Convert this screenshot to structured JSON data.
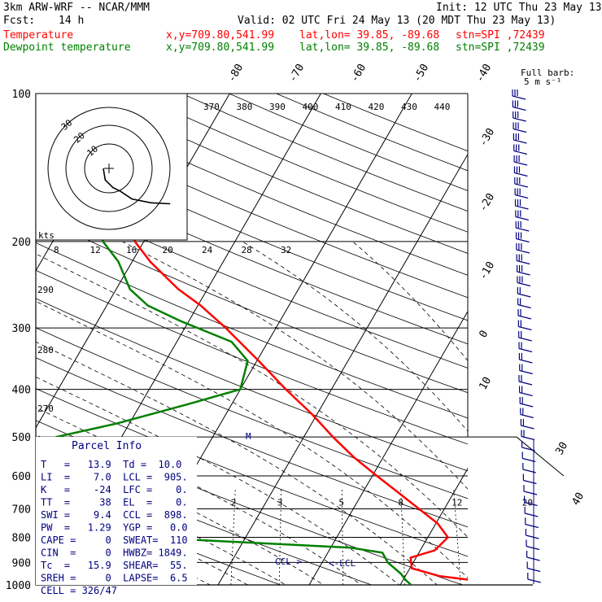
{
  "header": {
    "model": "3km ARW-WRF -- NCAR/MMM",
    "init": "Init: 12 UTC Thu 23 May 13",
    "fcst_label": "Fcst:",
    "fcst_value": "14 h",
    "valid": "Valid: 02 UTC Fri 24 May 13 (20 MDT Thu 23 May 13)"
  },
  "legend": [
    {
      "name": "Temperature",
      "xy": "x,y=709.80,541.99",
      "latlon": "lat,lon= 39.85, -89.68",
      "stn": "stn=SPI ,72439",
      "color": "#ff0000"
    },
    {
      "name": "Dewpoint temperature",
      "xy": "x,y=709.80,541.99",
      "latlon": "lat,lon= 39.85, -89.68",
      "stn": "stn=SPI ,72439",
      "color": "#008000"
    }
  ],
  "colors": {
    "temperature": "#ff0000",
    "dewpoint": "#008000",
    "wind": "#000080",
    "hodograph": "#000000"
  },
  "chart_data": {
    "type": "line",
    "title": "",
    "x_axis": "temperature (°C), skewed",
    "y_axis": "pressure (hPa), log scale",
    "pressure_ticks": [
      100,
      200,
      300,
      400,
      500,
      600,
      700,
      800,
      900,
      1000
    ],
    "top_temp_labels": [
      "-80",
      "-70",
      "-60",
      "-50",
      "-40"
    ],
    "right_temp_labels": [
      "-30",
      "-20",
      "-10",
      "0",
      "10"
    ],
    "side_temp_labels": [
      "30",
      "40"
    ],
    "theta_e_labels": [
      "370",
      "380",
      "390",
      "400",
      "410",
      "420",
      "430",
      "440"
    ],
    "theta_left_labels": [
      "290",
      "280",
      "270"
    ],
    "mixing_ratio_labels": [
      "2",
      "3",
      "5",
      "8",
      "12",
      "20"
    ],
    "series": [
      {
        "name": "Temperature",
        "points": [
          {
            "p": 1000,
            "t": 19.4
          },
          {
            "p": 975,
            "t": 17.0
          },
          {
            "p": 960,
            "t": 13.8
          },
          {
            "p": 925,
            "t": 10.2
          },
          {
            "p": 880,
            "t": 9.4
          },
          {
            "p": 850,
            "t": 11.6
          },
          {
            "p": 800,
            "t": 12.2
          },
          {
            "p": 750,
            "t": 10.2
          },
          {
            "p": 700,
            "t": 7.2
          },
          {
            "p": 650,
            "t": 4.0
          },
          {
            "p": 600,
            "t": 0.5
          },
          {
            "p": 550,
            "t": -3.2
          },
          {
            "p": 500,
            "t": -6.8
          },
          {
            "p": 450,
            "t": -10.5
          },
          {
            "p": 400,
            "t": -15.0
          },
          {
            "p": 350,
            "t": -19.8
          },
          {
            "p": 300,
            "t": -25.5
          },
          {
            "p": 270,
            "t": -29.7
          },
          {
            "p": 250,
            "t": -33.2
          },
          {
            "p": 220,
            "t": -38.0
          },
          {
            "p": 200,
            "t": -41.0
          },
          {
            "p": 180,
            "t": -42.5
          },
          {
            "p": 150,
            "t": -44.0
          },
          {
            "p": 130,
            "t": -46.0
          },
          {
            "p": 115,
            "t": -48.5
          },
          {
            "p": 100,
            "t": -51.0
          }
        ]
      },
      {
        "name": "Dewpoint temperature",
        "points": [
          {
            "p": 1000,
            "t": 11.2
          },
          {
            "p": 975,
            "t": 10.2
          },
          {
            "p": 950,
            "t": 9.4
          },
          {
            "p": 900,
            "t": 7.2
          },
          {
            "p": 860,
            "t": 6.0
          },
          {
            "p": 840,
            "t": 2.2
          },
          {
            "p": 800,
            "t": -21.0
          },
          {
            "p": 750,
            "t": -36.0
          },
          {
            "p": 720,
            "t": -39.5
          },
          {
            "p": 650,
            "t": -37.8
          },
          {
            "p": 600,
            "t": -38.0
          },
          {
            "p": 550,
            "t": -38.8
          },
          {
            "p": 500,
            "t": -37.2
          },
          {
            "p": 470,
            "t": -31.5
          },
          {
            "p": 430,
            "t": -25.0
          },
          {
            "p": 400,
            "t": -20.0
          },
          {
            "p": 350,
            "t": -21.0
          },
          {
            "p": 320,
            "t": -24.0
          },
          {
            "p": 290,
            "t": -31.0
          },
          {
            "p": 270,
            "t": -35.5
          },
          {
            "p": 250,
            "t": -38.5
          },
          {
            "p": 220,
            "t": -41.5
          },
          {
            "p": 200,
            "t": -44.5
          },
          {
            "p": 175,
            "t": -46.5
          },
          {
            "p": 165,
            "t": -50.5
          },
          {
            "p": 140,
            "t": -63.0
          },
          {
            "p": 120,
            "t": -66.0
          },
          {
            "p": 110,
            "t": -64.5
          },
          {
            "p": 100,
            "t": -64.0
          }
        ]
      }
    ],
    "wind_barbs_title": "Full barb:",
    "wind_barbs_unit": "5 m s⁻¹",
    "hodograph": {
      "unit_label": "kts",
      "ring_labels": [
        "30",
        "20",
        "10"
      ],
      "points": [
        {
          "x": -3,
          "y": 0
        },
        {
          "x": -2,
          "y": -6
        },
        {
          "x": 2,
          "y": -10
        },
        {
          "x": 6,
          "y": -12
        },
        {
          "x": 12,
          "y": -16
        },
        {
          "x": 22,
          "y": -18
        },
        {
          "x": 32,
          "y": -18.5
        }
      ]
    },
    "parcel_ticks": [
      "8",
      "12",
      "16",
      "20",
      "24",
      "28",
      "32"
    ],
    "annotations": [
      "CCL",
      "LCL",
      "M"
    ]
  },
  "parcel": {
    "title": "Parcel Info",
    "rows": [
      "T   =   13.9  Td =  10.0",
      "LI  =    7.0  LCL =  905.",
      "K   =    -24  LFC =    0.",
      "TT  =     38  EL  =    0.",
      "SWI =    9.4  CCL =  898.",
      "PW  =   1.29  YGP =   0.0",
      "CAPE =     0  SWEAT=  110",
      "CIN  =     0  HWBZ= 1849.",
      "Tc  =   15.9  SHEAR=  55.",
      "SREH =     0  LAPSE=  6.5",
      "CELL = 326/47"
    ]
  }
}
